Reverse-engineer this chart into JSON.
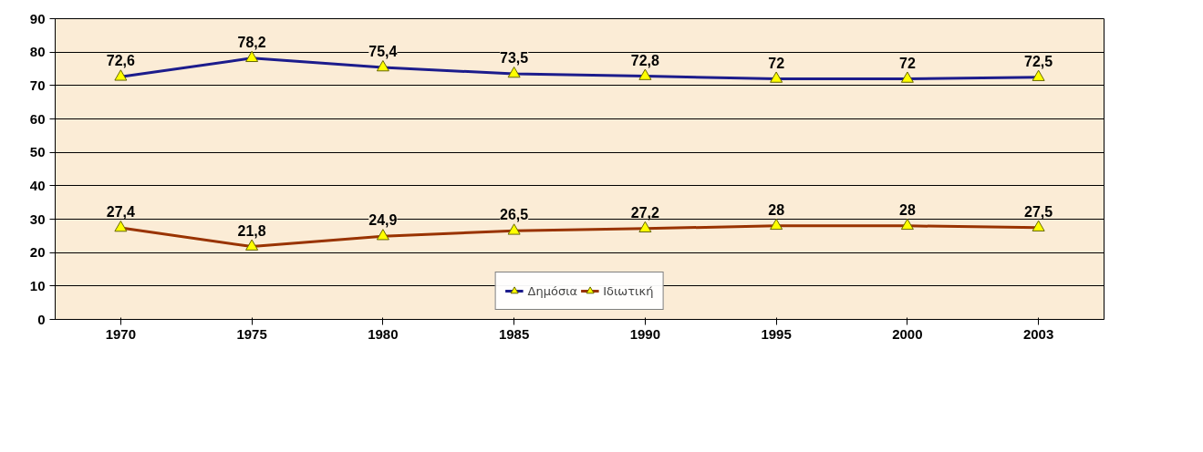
{
  "chart_data": {
    "type": "line",
    "categories": [
      "1970",
      "1975",
      "1980",
      "1985",
      "1990",
      "1995",
      "2000",
      "2003"
    ],
    "series": [
      {
        "name": "Δημόσια",
        "color": "#1c1c8c",
        "values": [
          72.6,
          78.2,
          75.4,
          73.5,
          72.8,
          72,
          72,
          72.5
        ],
        "value_labels": [
          "72,6",
          "78,2",
          "75,4",
          "73,5",
          "72,8",
          "72",
          "72",
          "72,5"
        ]
      },
      {
        "name": "Ιδιωτική",
        "color": "#993300",
        "values": [
          27.4,
          21.8,
          24.9,
          26.5,
          27.2,
          28,
          28,
          27.5
        ],
        "value_labels": [
          "27,4",
          "21,8",
          "24,9",
          "26,5",
          "27,2",
          "28",
          "28",
          "27,5"
        ]
      }
    ],
    "ylim": [
      0,
      90
    ],
    "yticks": [
      0,
      10,
      20,
      30,
      40,
      50,
      60,
      70,
      80,
      90
    ],
    "grid": "y",
    "legend": "bottom",
    "marker": "triangle",
    "line_style": "solid"
  }
}
